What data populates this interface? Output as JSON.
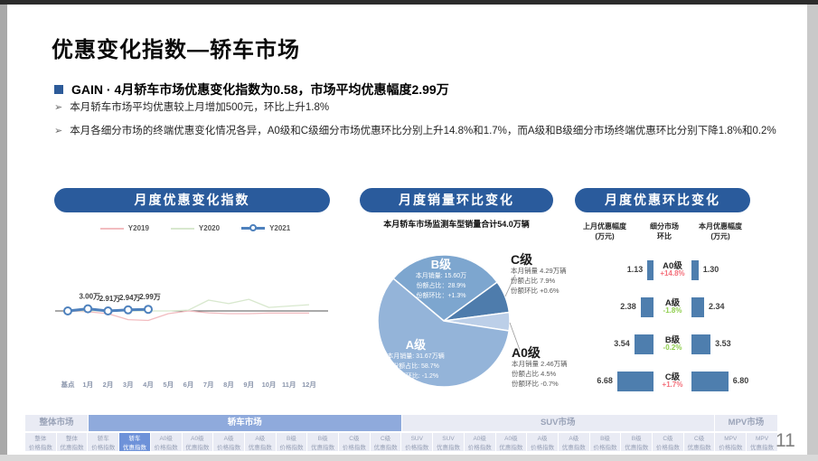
{
  "page": {
    "page_number": "11"
  },
  "header": {
    "title": "优惠变化指数—轿车市场",
    "headline": "GAIN · 4月轿车市场优惠变化指数为0.58，市场平均优惠幅度2.99万",
    "bullet_icon": "➢",
    "bullets": [
      "本月轿车市场平均优惠较上月增加500元，环比上升1.8%",
      "本月各细分市场的终端优惠变化情况各异，A0级和C级细分市场优惠环比分别上升14.8%和1.7%，而A级和B级细分市场终端优惠环比分别下降1.8%和0.2%"
    ]
  },
  "panels": {
    "index_chart": {
      "title": "月度优惠变化指数"
    },
    "sales_pie": {
      "title": "月度销量环比变化",
      "subtitle": "本月轿车市场监测车型销量合计54.0万辆"
    },
    "discount_compare": {
      "title": "月度优惠环比变化"
    }
  },
  "chart_data": [
    {
      "type": "line",
      "title": "月度优惠变化指数",
      "x": [
        "基点",
        "1月",
        "2月",
        "3月",
        "4月",
        "5月",
        "6月",
        "7月",
        "8月",
        "9月",
        "10月",
        "11月",
        "12月"
      ],
      "unit": "万",
      "legend_position": "top",
      "baseline": 0,
      "series": [
        {
          "name": "Y2019",
          "color": "#f2bcc0",
          "marker": false,
          "values": [
            0,
            -0.3,
            -1,
            -3.2,
            -3.5,
            -1,
            0,
            -0.7,
            -1,
            -1,
            -0.8,
            -0.8,
            -0.8
          ]
        },
        {
          "name": "Y2020",
          "color": "#d8e8ce",
          "marker": false,
          "values": [
            0,
            0,
            0,
            0,
            0,
            0,
            0.3,
            4,
            2.7,
            4.3,
            1.3,
            1.8,
            2.3
          ]
        },
        {
          "name": "Y2021",
          "color": "#4e81bd",
          "marker": true,
          "values": [
            0,
            0.8,
            0,
            0.4,
            0.6
          ],
          "point_labels": [
            "",
            "3.00万",
            "2.91万",
            "2.94万",
            "2.99万"
          ]
        }
      ]
    },
    {
      "type": "pie",
      "title": "月度销量环比变化",
      "subtitle": "本月轿车市场监测车型销量合计54.0万辆",
      "start_angle_deg": -50,
      "slices": [
        {
          "name": "B级",
          "color": "#7da6cf",
          "share_pct": 28.9,
          "label_inside": true,
          "label_lines": [
            "本月销量: 15.60万",
            "份额占比：28.9%",
            "份额环比：+1.3%"
          ]
        },
        {
          "name": "C级",
          "color": "#4e7cac",
          "share_pct": 7.9,
          "label_inside": false,
          "label_lines": [
            "本月销量 4.29万辆",
            "份额占比 7.9%",
            "份额环比 +0.6%"
          ]
        },
        {
          "name": "A0级",
          "color": "#bccfe8",
          "share_pct": 4.5,
          "label_inside": false,
          "label_lines": [
            "本月销量 2.46万辆",
            "份额占比 4.5%",
            "份额环比 -0.7%"
          ]
        },
        {
          "name": "A级",
          "color": "#94b4d9",
          "share_pct": 58.7,
          "label_inside": true,
          "label_lines": [
            "本月销量: 31.67万辆",
            "份额占比: 58.7%",
            "份额环比: -1.2%"
          ]
        }
      ]
    },
    {
      "type": "bar",
      "subtype": "tornado",
      "title": "月度优惠环比变化",
      "headers": [
        "上月优惠幅度\n(万元)",
        "细分市场\n环比",
        "本月优惠幅度\n(万元)"
      ],
      "bar_color": "#4e7eae",
      "up_color": "#f4707b",
      "down_color": "#8fce4e",
      "rows": [
        {
          "segment": "A0级",
          "prev": 1.13,
          "mom": "+14.8%",
          "direction": "up",
          "curr": 1.3
        },
        {
          "segment": "A级",
          "prev": 2.38,
          "mom": "-1.8%",
          "direction": "down",
          "curr": 2.34
        },
        {
          "segment": "B级",
          "prev": 3.54,
          "mom": "-0.2%",
          "direction": "down",
          "curr": 3.53
        },
        {
          "segment": "C级",
          "prev": 6.68,
          "mom": "+1.7%",
          "direction": "up",
          "curr": 6.8
        }
      ]
    }
  ],
  "footer_nav": {
    "groups": [
      {
        "label": "整体市场",
        "span": 2,
        "active": false
      },
      {
        "label": "轿车市场",
        "span": 10,
        "active": true
      },
      {
        "label": "SUV市场",
        "span": 10,
        "active": false
      },
      {
        "label": "MPV市场",
        "span": 2,
        "active": false
      }
    ],
    "tabs": [
      {
        "label1": "整体",
        "label2": "价格指数",
        "active": false
      },
      {
        "label1": "整体",
        "label2": "优惠指数",
        "active": false
      },
      {
        "label1": "轿车",
        "label2": "价格指数",
        "active": false
      },
      {
        "label1": "轿车",
        "label2": "优惠指数",
        "active": true
      },
      {
        "label1": "A0级",
        "label2": "价格指数",
        "active": false
      },
      {
        "label1": "A0级",
        "label2": "优惠指数",
        "active": false
      },
      {
        "label1": "A级",
        "label2": "价格指数",
        "active": false
      },
      {
        "label1": "A级",
        "label2": "优惠指数",
        "active": false
      },
      {
        "label1": "B级",
        "label2": "价格指数",
        "active": false
      },
      {
        "label1": "B级",
        "label2": "优惠指数",
        "active": false
      },
      {
        "label1": "C级",
        "label2": "价格指数",
        "active": false
      },
      {
        "label1": "C级",
        "label2": "优惠指数",
        "active": false
      },
      {
        "label1": "SUV",
        "label2": "价格指数",
        "active": false
      },
      {
        "label1": "SUV",
        "label2": "优惠指数",
        "active": false
      },
      {
        "label1": "A0级",
        "label2": "价格指数",
        "active": false
      },
      {
        "label1": "A0级",
        "label2": "优惠指数",
        "active": false
      },
      {
        "label1": "A级",
        "label2": "价格指数",
        "active": false
      },
      {
        "label1": "A级",
        "label2": "优惠指数",
        "active": false
      },
      {
        "label1": "B级",
        "label2": "价格指数",
        "active": false
      },
      {
        "label1": "B级",
        "label2": "优惠指数",
        "active": false
      },
      {
        "label1": "C级",
        "label2": "价格指数",
        "active": false
      },
      {
        "label1": "C级",
        "label2": "优惠指数",
        "active": false
      },
      {
        "label1": "MPV",
        "label2": "价格指数",
        "active": false
      },
      {
        "label1": "MPV",
        "label2": "优惠指数",
        "active": false
      }
    ]
  }
}
